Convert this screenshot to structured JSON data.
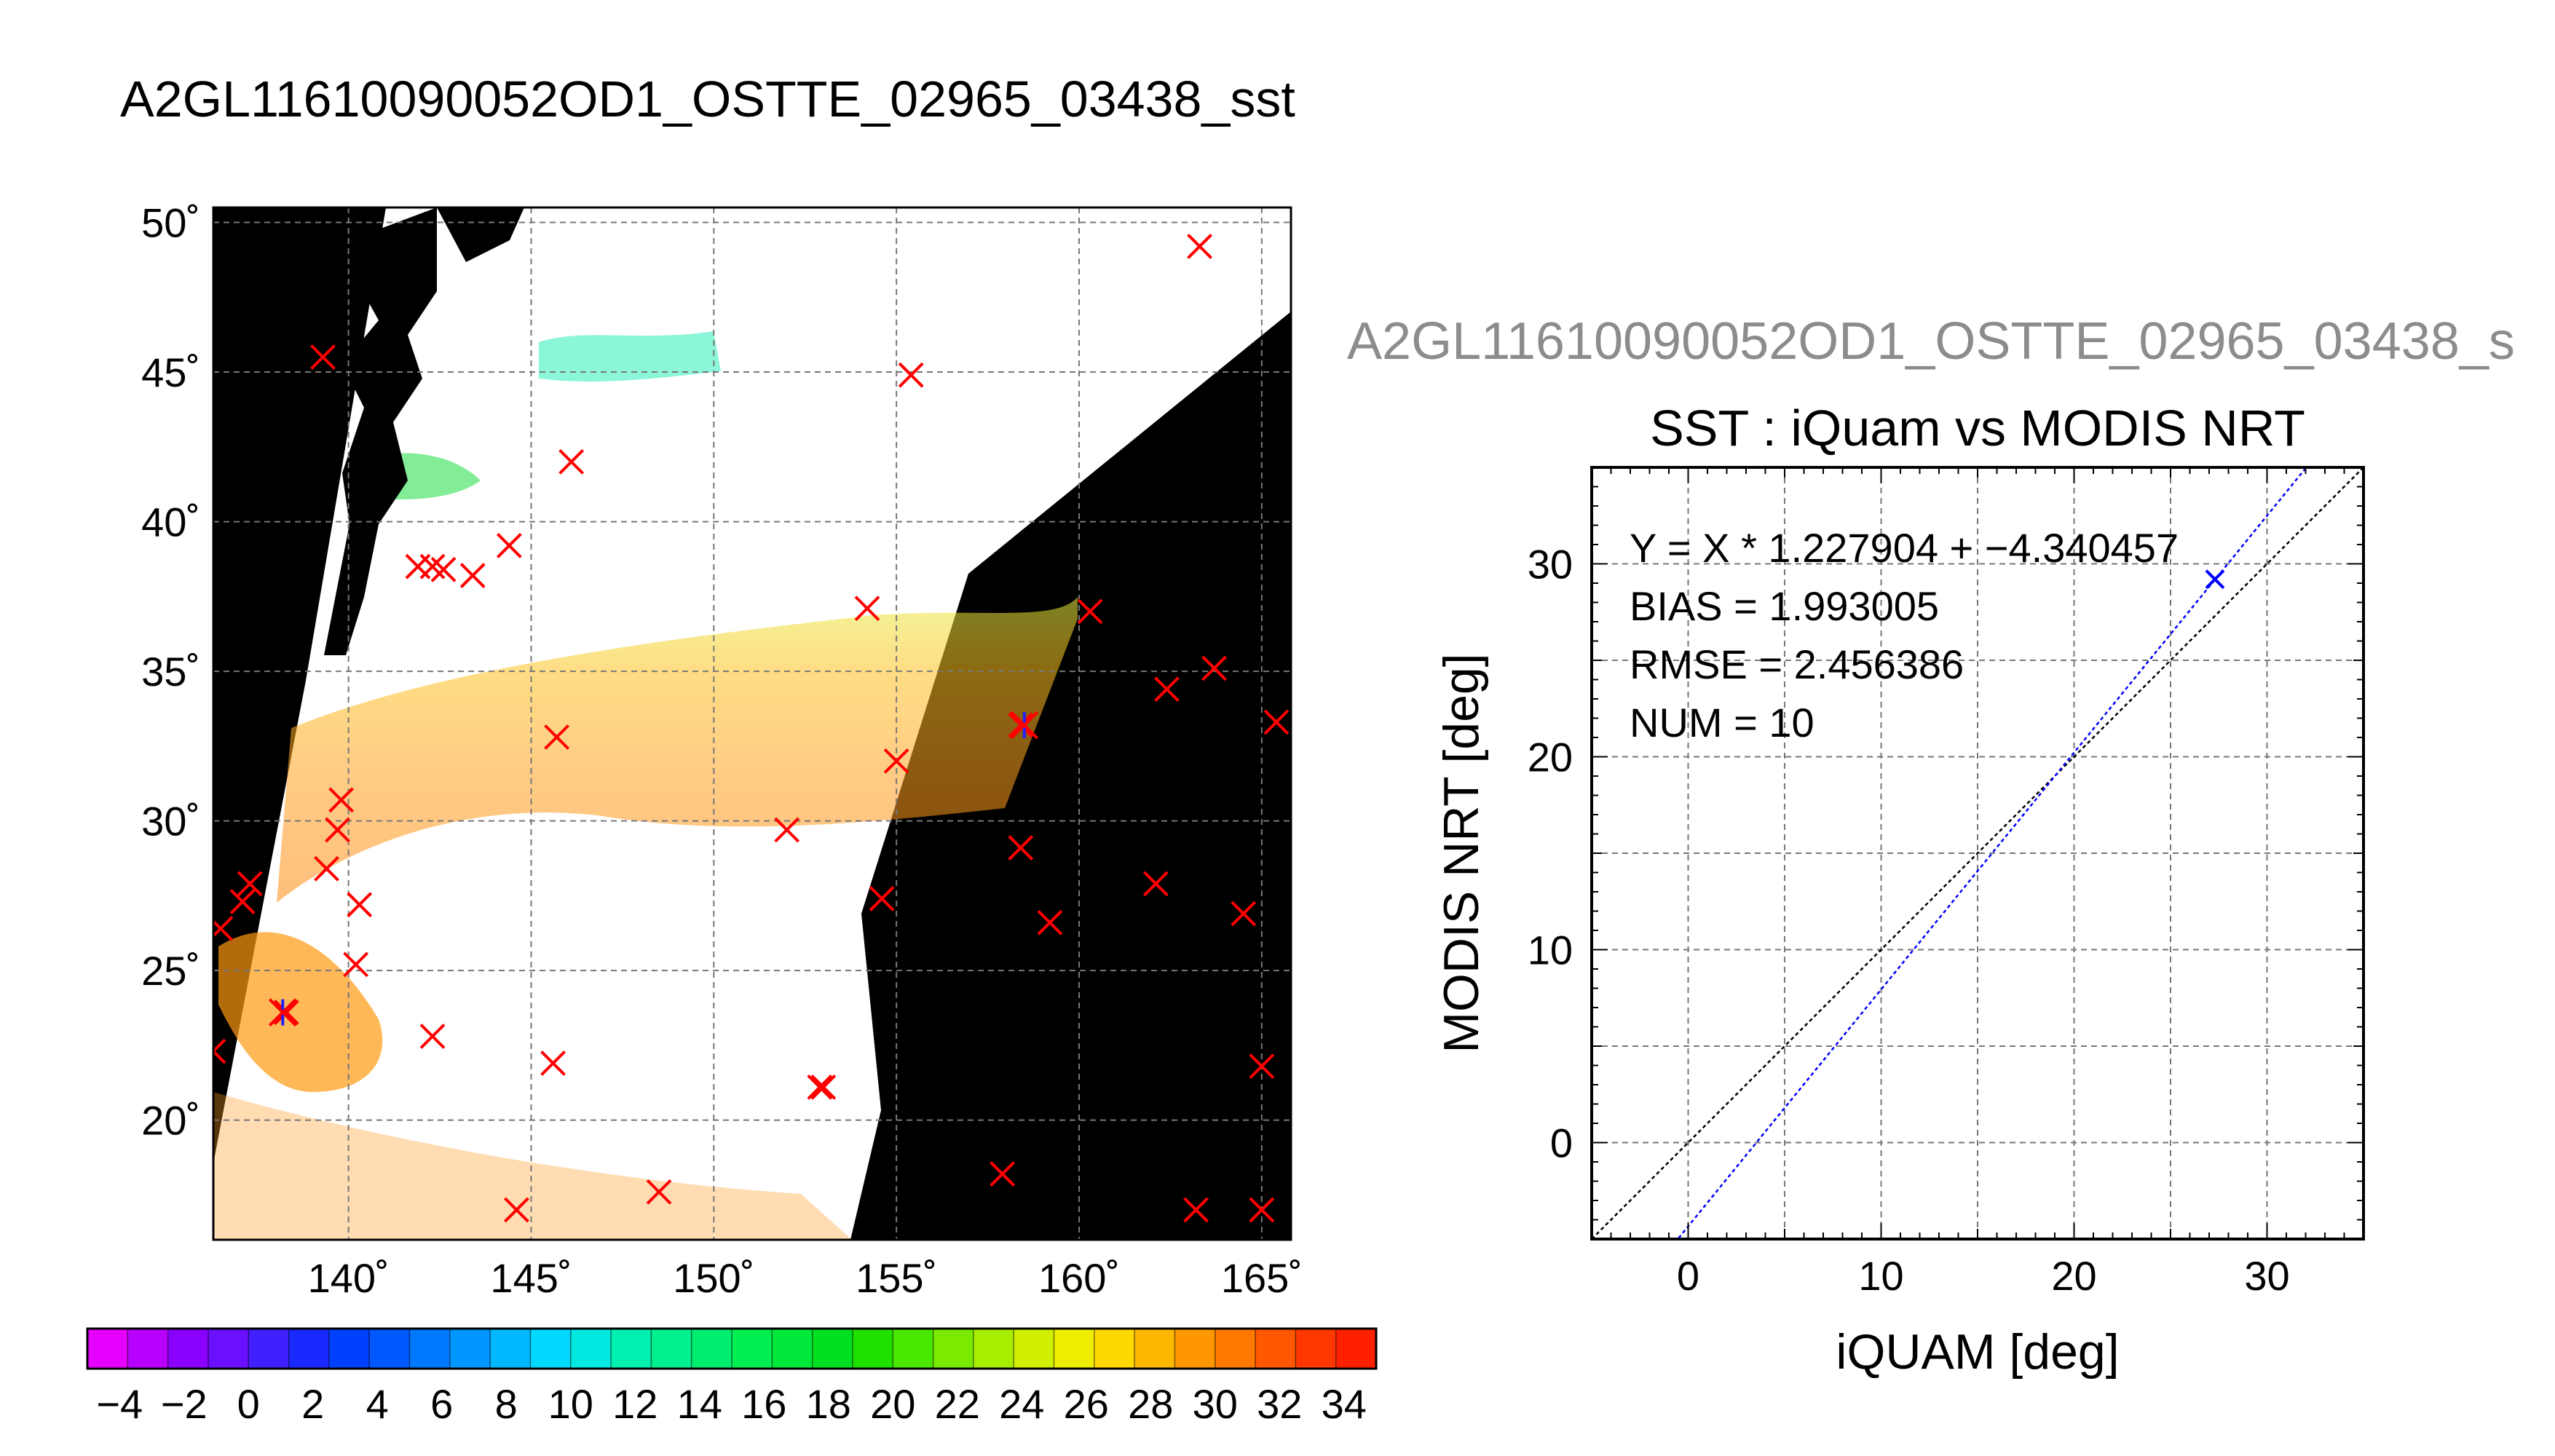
{
  "title": "A2GL11610090052OD1_OSTTE_02965_03438_sst",
  "chart_data": [
    {
      "type": "map",
      "title": "A2GL11610090052OD1_OSTTE_02965_03438_sst",
      "xlim": [
        136.3,
        165.8
      ],
      "ylim": [
        16.0,
        50.5
      ],
      "x_ticks": [
        140,
        145,
        150,
        155,
        160,
        165
      ],
      "x_tick_labels": [
        "140˚",
        "145˚",
        "150˚",
        "155˚",
        "160˚",
        "165˚"
      ],
      "y_ticks": [
        20,
        25,
        30,
        35,
        40,
        45,
        50
      ],
      "y_tick_labels": [
        "20˚",
        "25˚",
        "30˚",
        "35˚",
        "40˚",
        "45˚",
        "50˚"
      ],
      "grid": true,
      "matchup_markers_red": [
        [
          163.3,
          49.2
        ],
        [
          139.3,
          45.5
        ],
        [
          155.4,
          44.9
        ],
        [
          146.1,
          42.0
        ],
        [
          144.4,
          39.2
        ],
        [
          141.9,
          38.5
        ],
        [
          142.3,
          38.5
        ],
        [
          142.6,
          38.4
        ],
        [
          143.4,
          38.2
        ],
        [
          154.2,
          37.1
        ],
        [
          160.3,
          37.0
        ],
        [
          163.7,
          35.1
        ],
        [
          162.4,
          34.4
        ],
        [
          165.4,
          33.3
        ],
        [
          145.7,
          32.8
        ],
        [
          158.4,
          33.2
        ],
        [
          155.0,
          32.0
        ],
        [
          139.8,
          30.7
        ],
        [
          139.7,
          29.7
        ],
        [
          152.0,
          29.7
        ],
        [
          158.4,
          29.1
        ],
        [
          139.4,
          28.4
        ],
        [
          137.3,
          27.9
        ],
        [
          140.3,
          27.2
        ],
        [
          137.1,
          27.3
        ],
        [
          154.6,
          27.4
        ],
        [
          162.1,
          27.9
        ],
        [
          164.5,
          26.9
        ],
        [
          159.2,
          26.6
        ],
        [
          136.5,
          26.4
        ],
        [
          140.2,
          25.2
        ],
        [
          138.3,
          23.6
        ],
        [
          136.3,
          22.3
        ],
        [
          142.3,
          22.8
        ],
        [
          145.6,
          21.9
        ],
        [
          152.9,
          21.1
        ],
        [
          153.0,
          21.1
        ],
        [
          165.0,
          21.8
        ],
        [
          157.9,
          18.2
        ],
        [
          148.5,
          17.6
        ],
        [
          144.6,
          17.0
        ],
        [
          163.2,
          17.0
        ],
        [
          165.0,
          17.0
        ]
      ],
      "matchup_markers_blue": [
        [
          138.2,
          23.6
        ],
        [
          158.5,
          33.2
        ]
      ]
    },
    {
      "type": "colorbar",
      "min": -5,
      "max": 35,
      "tick_labels": [
        "−4",
        "−2",
        "0",
        "2",
        "4",
        "6",
        "8",
        "10",
        "12",
        "14",
        "16",
        "18",
        "20",
        "22",
        "24",
        "26",
        "28",
        "30",
        "32",
        "34"
      ],
      "colors": [
        "#e600ff",
        "#b800ff",
        "#8a00ff",
        "#6a10ff",
        "#4020ff",
        "#1a2aff",
        "#0040ff",
        "#0058ff",
        "#0078ff",
        "#0096ff",
        "#00b8ff",
        "#00d8ff",
        "#00e8e0",
        "#00f0b0",
        "#00f090",
        "#00ee70",
        "#00ee50",
        "#00e83a",
        "#00e020",
        "#20e000",
        "#4ae800",
        "#7aea00",
        "#a8ee00",
        "#d0f000",
        "#f0ee00",
        "#ffd800",
        "#ffb800",
        "#ff9800",
        "#ff7800",
        "#ff5800",
        "#ff3800",
        "#ff2000"
      ]
    },
    {
      "type": "scatter",
      "subtitle": "A2GL11610090052OD1_OSTTE_02965_03438_s",
      "title": "SST : iQuam vs MODIS NRT",
      "xlabel": "iQUAM [deg]",
      "ylabel": "MODIS NRT [deg]",
      "xlim": [
        -5,
        35
      ],
      "ylim": [
        -5,
        35
      ],
      "x_ticks": [
        0,
        10,
        20,
        30
      ],
      "y_ticks": [
        0,
        10,
        20,
        30
      ],
      "grid": true,
      "points": [
        [
          27.3,
          29.2
        ]
      ],
      "fit_line": {
        "slope": 1.227904,
        "intercept": -4.340457,
        "color": "#0000ff"
      },
      "identity_line": {
        "color": "#000000"
      },
      "annotations": [
        "Y = X * 1.227904 + −4.340457",
        "BIAS = 1.993005",
        "RMSE = 2.456386",
        "NUM = 10"
      ]
    }
  ]
}
